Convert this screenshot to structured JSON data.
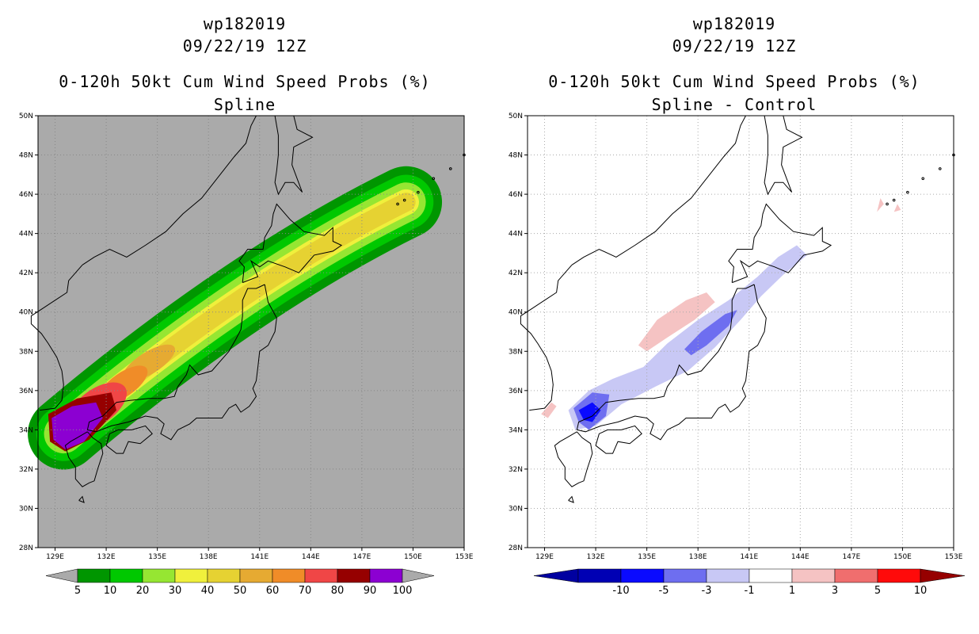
{
  "panels": [
    {
      "id": "spline",
      "storm": "wp182019",
      "datetime": "09/22/19 12Z",
      "product": "0-120h 50kt Cum Wind Speed Probs (%)",
      "subtitle": "Spline",
      "background": "#aaaaaa",
      "colorbar": {
        "labels": [
          "5",
          "10",
          "20",
          "30",
          "40",
          "50",
          "60",
          "70",
          "80",
          "90",
          "100"
        ],
        "colors": [
          "#009600",
          "#00c800",
          "#96e632",
          "#f0f03c",
          "#e6d232",
          "#e6aa32",
          "#f08c28",
          "#f04646",
          "#960000",
          "#8c00d2"
        ],
        "under_color": "#aaaaaa",
        "over_color": "#aaaaaa"
      }
    },
    {
      "id": "spline-control",
      "storm": "wp182019",
      "datetime": "09/22/19 12Z",
      "product": "0-120h 50kt Cum Wind Speed Probs (%)",
      "subtitle": "Spline - Control",
      "background": "#ffffff",
      "colorbar": {
        "labels": [
          "-10",
          "-5",
          "-3",
          "-1",
          "1",
          "3",
          "5",
          "10"
        ],
        "colors": [
          "#0000b4",
          "#0a0aff",
          "#6e6ef0",
          "#c8c8f5",
          "#ffffff",
          "#f5c3c3",
          "#f06e6e",
          "#ff0a0a",
          "#960000"
        ],
        "under_color": "#0000a0",
        "over_color": "#8c0000"
      }
    }
  ],
  "map": {
    "lon_ticks": [
      "129E",
      "132E",
      "135E",
      "138E",
      "141E",
      "144E",
      "147E",
      "150E",
      "153E"
    ],
    "lat_ticks": [
      "50N",
      "48N",
      "46N",
      "44N",
      "42N",
      "40N",
      "38N",
      "36N",
      "34N",
      "32N",
      "30N",
      "28N"
    ],
    "lon_range": [
      128,
      153
    ],
    "lat_range": [
      28,
      50
    ]
  }
}
